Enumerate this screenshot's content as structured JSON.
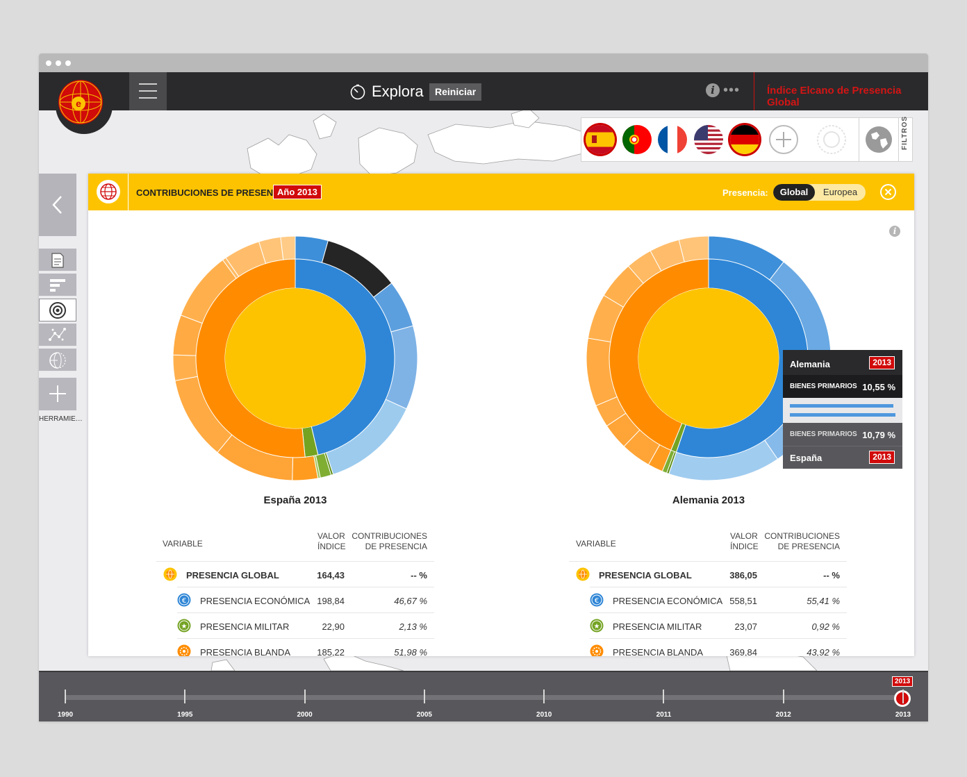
{
  "topbar": {
    "title": "Explora",
    "reset_label": "Reiniciar",
    "info_icon": "i",
    "more_dots": "•••",
    "brand": "Índice Elcano de Presencia Global"
  },
  "flags": [
    "spain",
    "portugal",
    "france",
    "usa",
    "germany"
  ],
  "selected_flags": [
    "spain",
    "germany"
  ],
  "filters_label": "FILTROS",
  "tools_label": "HERRAMIE…",
  "panel": {
    "title": "CONTRIBUCIONES DE PRESENCIA",
    "year_badge": "Año 2013",
    "presencia_label": "Presencia:",
    "toggle_on": "Global",
    "toggle_off": "Europea",
    "info_icon": "i"
  },
  "colors": {
    "yellow": "#fdc300",
    "orange": "#ff8c00",
    "blue": "#2f86d6",
    "green": "#74a322",
    "red": "#d10a0a",
    "dark": "#2a2a2c"
  },
  "table_headers": {
    "variable": "VARIABLE",
    "valor_1": "VALOR",
    "valor_2": "ÍNDICE",
    "contrib_1": "CONTRIBUCIONES",
    "contrib_2": "DE PRESENCIA"
  },
  "left": {
    "chart_title": "España 2013",
    "rows": [
      {
        "name": "PRESENCIA GLOBAL",
        "valor": "164,43",
        "contrib": "-- %"
      },
      {
        "name": "PRESENCIA ECONÓMICA",
        "valor": "198,84",
        "contrib": "46,67 %"
      },
      {
        "name": "PRESENCIA MILITAR",
        "valor": "22,90",
        "contrib": "2,13 %"
      },
      {
        "name": "PRESENCIA BLANDA",
        "valor": "185,22",
        "contrib": "51,98 %"
      }
    ]
  },
  "right": {
    "chart_title": "Alemania 2013",
    "rows": [
      {
        "name": "PRESENCIA GLOBAL",
        "valor": "386,05",
        "contrib": "-- %"
      },
      {
        "name": "PRESENCIA ECONÓMICA",
        "valor": "558,51",
        "contrib": "55,41 %"
      },
      {
        "name": "PRESENCIA MILITAR",
        "valor": "23,07",
        "contrib": "0,92 %"
      },
      {
        "name": "PRESENCIA BLANDA",
        "valor": "369,84",
        "contrib": "43,92 %"
      }
    ]
  },
  "tooltip": {
    "country_top": "Alemania",
    "year_top": "2013",
    "label_top": "BIENES PRIMARIOS",
    "value_top": "10,55 %",
    "bar_top": 10.55,
    "bar_bottom": 10.79,
    "label_bottom": "BIENES PRIMARIOS",
    "value_bottom": "10,79 %",
    "country_bottom": "España",
    "year_bottom": "2013"
  },
  "chart_data": [
    {
      "type": "pie",
      "title": "España 2013",
      "rings": [
        {
          "ring": "inner",
          "slices": [
            {
              "name": "PRESENCIA ECONÓMICA",
              "value": 46.67,
              "color": "#2f86d6"
            },
            {
              "name": "PRESENCIA MILITAR",
              "value": 2.13,
              "color": "#74a322"
            },
            {
              "name": "PRESENCIA BLANDA",
              "value": 51.98,
              "color": "#ff8c00"
            }
          ]
        },
        {
          "ring": "outer",
          "slices": [
            {
              "value": 4.5,
              "color": "#3d8fd9"
            },
            {
              "value": 10.5,
              "color": "#252525"
            },
            {
              "value": 6.5,
              "color": "#5c9fdf"
            },
            {
              "value": 11.5,
              "color": "#7fb3e6"
            },
            {
              "value": 13.67,
              "color": "#9ccbee"
            },
            {
              "value": 0.3,
              "color": "#5f8f18"
            },
            {
              "value": 1.5,
              "color": "#7fae33"
            },
            {
              "value": 0.33,
              "color": "#a4c860"
            },
            {
              "value": 3.5,
              "color": "#ff9b1f"
            },
            {
              "value": 11,
              "color": "#ffa436"
            },
            {
              "value": 11.5,
              "color": "#ffaa42"
            },
            {
              "value": 3.5,
              "color": "#ffb04d"
            },
            {
              "value": 5.5,
              "color": "#ffaa42"
            },
            {
              "value": 9.5,
              "color": "#ffb04d"
            },
            {
              "value": 0.5,
              "color": "#ffba63"
            },
            {
              "value": 5,
              "color": "#ffbd6b"
            },
            {
              "value": 3,
              "color": "#ffc478"
            },
            {
              "value": 1.99,
              "color": "#ffcb86"
            }
          ]
        }
      ]
    },
    {
      "type": "pie",
      "title": "Alemania 2013",
      "rings": [
        {
          "ring": "inner",
          "slices": [
            {
              "name": "PRESENCIA ECONÓMICA",
              "value": 55.41,
              "color": "#2f86d6"
            },
            {
              "name": "PRESENCIA MILITAR",
              "value": 0.92,
              "color": "#74a322"
            },
            {
              "name": "PRESENCIA BLANDA",
              "value": 43.92,
              "color": "#ff8c00"
            }
          ]
        },
        {
          "ring": "outer",
          "slices": [
            {
              "name": "BIENES PRIMARIOS",
              "value": 10.55,
              "color": "#3d8fd9"
            },
            {
              "value": 16,
              "color": "#6aa9e3"
            },
            {
              "value": 14,
              "color": "#86baea"
            },
            {
              "value": 14.86,
              "color": "#a0ccef"
            },
            {
              "value": 0.3,
              "color": "#5f8f18"
            },
            {
              "value": 0.62,
              "color": "#7fae33"
            },
            {
              "value": 2,
              "color": "#ff9b1f"
            },
            {
              "value": 4,
              "color": "#ffa436"
            },
            {
              "value": 3.5,
              "color": "#ffa436"
            },
            {
              "value": 3,
              "color": "#ffaa42"
            },
            {
              "value": 9,
              "color": "#ffaa42"
            },
            {
              "value": 6,
              "color": "#ffb04d"
            },
            {
              "value": 5,
              "color": "#ffb04d"
            },
            {
              "value": 3.5,
              "color": "#ffba63"
            },
            {
              "value": 4,
              "color": "#ffbd6b"
            },
            {
              "value": 3.92,
              "color": "#ffc478"
            }
          ]
        }
      ]
    }
  ],
  "timeline": {
    "years": [
      "1990",
      "1995",
      "2000",
      "2005",
      "2010",
      "2011",
      "2012",
      "2013"
    ],
    "selected": "2013"
  }
}
